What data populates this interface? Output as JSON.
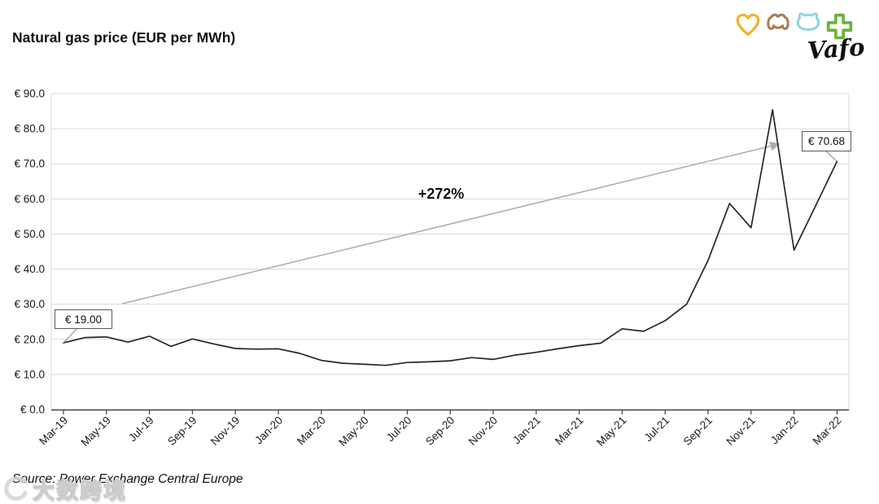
{
  "header": {
    "title": "Natural gas price (EUR per MWh)"
  },
  "logo": {
    "brand": "Vafo",
    "icons": [
      {
        "name": "heart-icon",
        "color": "#F2B32B"
      },
      {
        "name": "dog-icon",
        "color": "#A87C51"
      },
      {
        "name": "cat-icon",
        "color": "#8FD2E6"
      },
      {
        "name": "cross-icon",
        "color": "#6CB33F"
      }
    ]
  },
  "chart_data": {
    "type": "line",
    "title": "Natural gas price (EUR per MWh)",
    "x": [
      "Mar-19",
      "Apr-19",
      "May-19",
      "Jun-19",
      "Jul-19",
      "Aug-19",
      "Sep-19",
      "Oct-19",
      "Nov-19",
      "Dec-19",
      "Jan-20",
      "Feb-20",
      "Mar-20",
      "Apr-20",
      "May-20",
      "Jun-20",
      "Jul-20",
      "Aug-20",
      "Sep-20",
      "Oct-20",
      "Nov-20",
      "Dec-20",
      "Jan-21",
      "Feb-21",
      "Mar-21",
      "Apr-21",
      "May-21",
      "Jun-21",
      "Jul-21",
      "Aug-21",
      "Sep-21",
      "Oct-21",
      "Nov-21",
      "Dec-21",
      "Jan-22",
      "Feb-22",
      "Mar-22"
    ],
    "values": [
      19.0,
      20.5,
      20.7,
      19.2,
      20.9,
      18.0,
      20.1,
      18.7,
      17.4,
      17.2,
      17.3,
      16.0,
      14.0,
      13.2,
      12.9,
      12.6,
      13.4,
      13.6,
      13.9,
      14.8,
      14.3,
      15.5,
      16.3,
      17.3,
      18.2,
      18.9,
      23.0,
      22.3,
      25.3,
      30.0,
      42.5,
      58.7,
      51.8,
      85.4,
      45.4,
      58.0,
      70.68
    ],
    "x_tick_labels": [
      "Mar-19",
      "May-19",
      "Jul-19",
      "Sep-19",
      "Nov-19",
      "Jan-20",
      "Mar-20",
      "May-20",
      "Jul-20",
      "Sep-20",
      "Nov-20",
      "Jan-21",
      "Mar-21",
      "May-21",
      "Jul-21",
      "Sep-21",
      "Nov-21",
      "Jan-22",
      "Mar-22"
    ],
    "y_tick_labels": [
      "€ 0.0",
      "€ 10.0",
      "€ 20.0",
      "€ 30.0",
      "€ 40.0",
      "€ 50.0",
      "€ 60.0",
      "€ 70.0",
      "€ 80.0",
      "€ 90.0"
    ],
    "ylim": [
      0,
      90
    ],
    "grid": "horizontal",
    "legend": "none",
    "line_color": "#262626",
    "gridline_color": "#d9d9d9",
    "arrow_color": "#ababab",
    "annotations": {
      "growth_label": "+272%",
      "start_label": "€ 19.00",
      "end_label": "€ 70.68"
    }
  },
  "source": {
    "text": "Source: Power Exchange Central Europe"
  },
  "watermark": {
    "text": "大数跨境"
  }
}
